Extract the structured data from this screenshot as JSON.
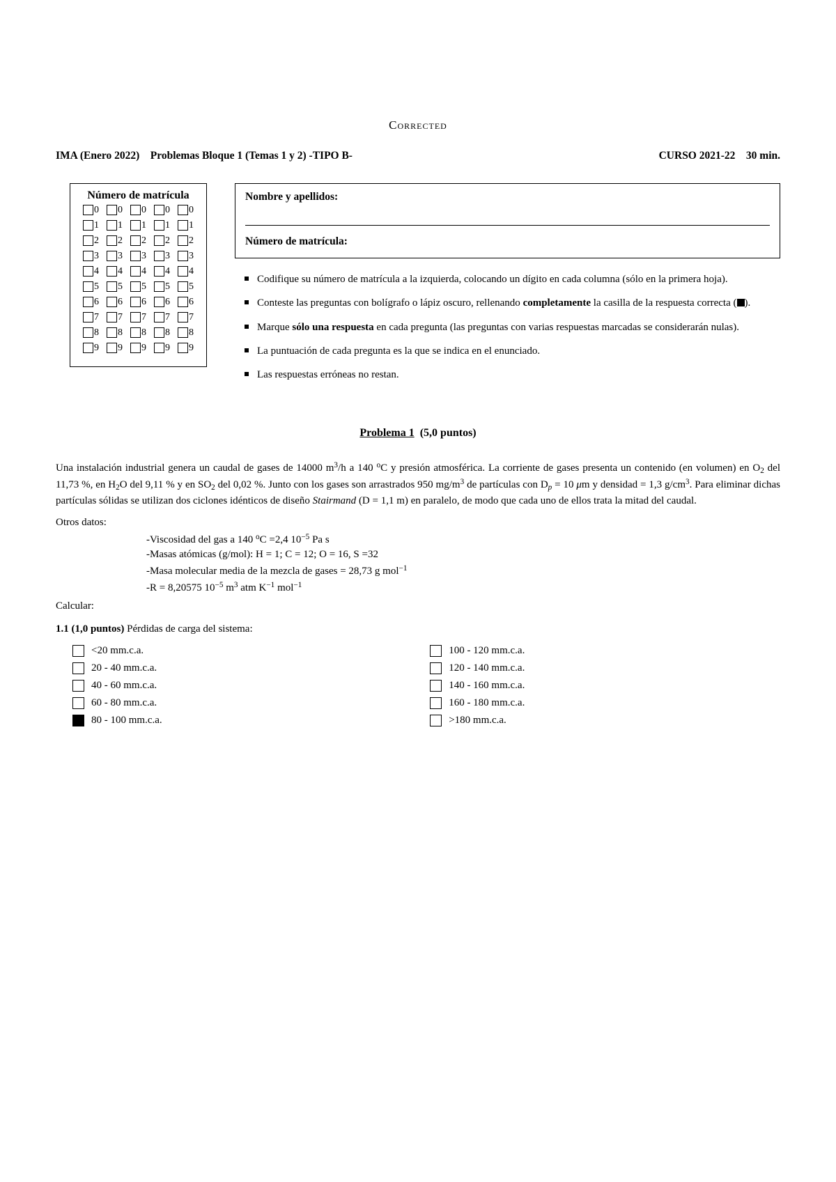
{
  "corrected": "Corrected",
  "header": {
    "left": "IMA (Enero 2022)",
    "mid": "Problemas Bloque 1 (Temas 1 y 2) -TIPO B-",
    "course": "CURSO 2021-22",
    "time": "30 min."
  },
  "matricula": {
    "title": "Número de matrícula",
    "digits": [
      "0",
      "1",
      "2",
      "3",
      "4",
      "5",
      "6",
      "7",
      "8",
      "9"
    ],
    "columns": 5
  },
  "namebox": {
    "name_label": "Nombre y apellidos:",
    "num_label": "Número de matrícula:"
  },
  "instructions": [
    "Codifique su número de matrícula a la izquierda, colocando un dígito en cada columna (sólo en la primera hoja).",
    "Conteste las preguntas con bolígrafo o lápiz oscuro, rellenando <b>completamente</b> la casilla de la respuesta correcta (<span class=\"filled-square\"></span>).",
    "Marque <b>sólo una respuesta</b> en cada pregunta (las preguntas con varias respuestas marcadas se considerarán nulas).",
    "La puntuación de cada pregunta es la que se indica en el enunciado.",
    "Las respuestas erróneas no restan."
  ],
  "problema": {
    "label": "Problema 1",
    "points": "(5,0 puntos)"
  },
  "problem_text": "Una instalación industrial genera un caudal de gases de 14000 m<sup>3</sup>/h a 140 <sup>o</sup>C y presión atmosférica. La corriente de gases presenta un contenido (en volumen) en O<sub>2</sub> del 11,73 %, en H<sub>2</sub>O del 9,11 % y en SO<sub>2</sub> del 0,02 %. Junto con los gases son arrastrados 950 mg/m<sup>3</sup> de partículas con D<sub><i>p</i></sub> = 10 <i>μ</i>m y densidad = 1,3 g/cm<sup>3</sup>. Para eliminar dichas partículas sólidas se utilizan dos ciclones idénticos de diseño <i>Stairmand</i> (D = 1,1 m) en paralelo, de modo que cada uno de ellos trata la mitad del caudal.",
  "otros_label": "Otros datos:",
  "data_lines": [
    "-Viscosidad del gas a 140 <sup>o</sup>C =2,4 10<sup>−5</sup> Pa s",
    "-Masas atómicas (g/mol): H = 1; C = 12; O = 16, S =32",
    "-Masa molecular media de la mezcla de gases = 28,73 g mol<sup>−1</sup>",
    "-R = 8,20575 10<sup>−5</sup> m<sup>3</sup> atm K<sup>−1</sup> mol<sup>−1</sup>"
  ],
  "calcular": "Calcular:",
  "subq": "<b>1.1 (1,0 puntos)</b> Pérdidas de carga del sistema:",
  "answers_left": [
    {
      "label": "<20 mm.c.a.",
      "filled": false
    },
    {
      "label": "20 - 40 mm.c.a.",
      "filled": false
    },
    {
      "label": "40 - 60 mm.c.a.",
      "filled": false
    },
    {
      "label": "60 - 80 mm.c.a.",
      "filled": false
    },
    {
      "label": "80 - 100 mm.c.a.",
      "filled": true
    }
  ],
  "answers_right": [
    {
      "label": "100 - 120 mm.c.a.",
      "filled": false
    },
    {
      "label": "120 - 140 mm.c.a.",
      "filled": false
    },
    {
      "label": "140 - 160 mm.c.a.",
      "filled": false
    },
    {
      "label": "160 - 180 mm.c.a.",
      "filled": false
    },
    {
      "label": ">180 mm.c.a.",
      "filled": false
    }
  ]
}
